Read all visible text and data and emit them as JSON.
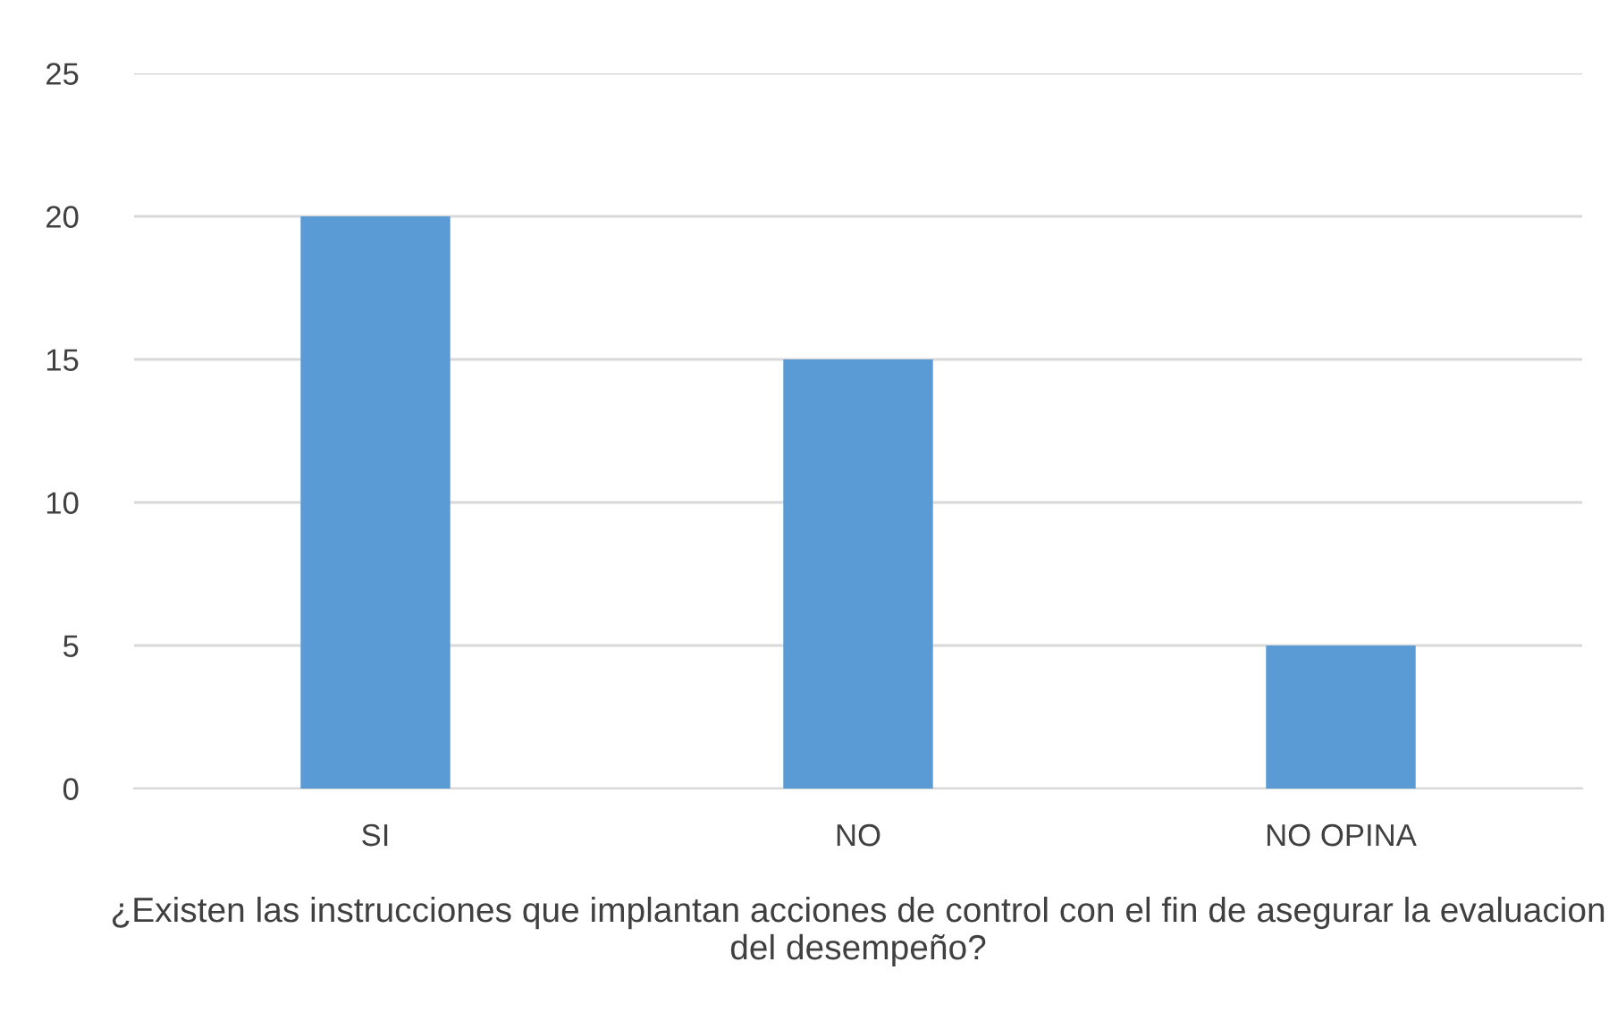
{
  "chart_data": {
    "type": "bar",
    "categories": [
      "SI",
      "NO",
      "NO OPINA"
    ],
    "values": [
      20,
      15,
      5
    ],
    "color": "#5b9bd5",
    "ylim": [
      0,
      25
    ],
    "yticks": [
      0,
      5,
      10,
      15,
      20,
      25
    ],
    "grid": "y",
    "xlabel": "¿Existen las instrucciones que implantan acciones de control con el fin de asegurar la evaluacion del desempeño?"
  }
}
